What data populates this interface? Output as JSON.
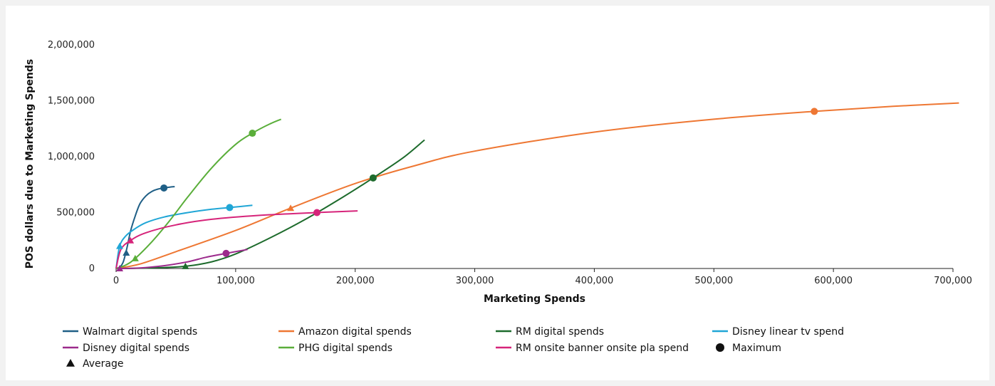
{
  "chart_data": {
    "type": "line",
    "title": "",
    "xlabel": "Marketing Spends",
    "ylabel": "POS dollars due to Marketing Spends",
    "xlim": [
      0,
      700000
    ],
    "ylim": [
      0,
      2000000
    ],
    "x_ticks": [
      0,
      100000,
      200000,
      300000,
      400000,
      500000,
      600000,
      700000
    ],
    "x_tick_labels": [
      "0",
      "100,000",
      "200,000",
      "300,000",
      "400,000",
      "500,000",
      "600,000",
      "700,000"
    ],
    "y_ticks": [
      0,
      500000,
      1000000,
      1500000,
      2000000
    ],
    "y_tick_labels": [
      "0",
      "500,000",
      "1,000,000",
      "1,500,000",
      "2,000,000"
    ],
    "grid": false,
    "legend_position": "bottom",
    "series": [
      {
        "name": "Walmart digital spends",
        "color": "#1f5f86",
        "points": [
          [
            0,
            0
          ],
          [
            3000,
            10000
          ],
          [
            6000,
            60000
          ],
          [
            9000,
            180000
          ],
          [
            12000,
            330000
          ],
          [
            16000,
            470000
          ],
          [
            20000,
            580000
          ],
          [
            25000,
            650000
          ],
          [
            30000,
            690000
          ],
          [
            35000,
            710000
          ],
          [
            40000,
            720000
          ],
          [
            45000,
            728000
          ],
          [
            49000,
            732000
          ]
        ],
        "average": [
          8500,
          140000
        ],
        "maximum": [
          40000,
          720000
        ]
      },
      {
        "name": "Amazon digital spends",
        "color": "#ee7733",
        "points": [
          [
            0,
            0
          ],
          [
            20000,
            40000
          ],
          [
            50000,
            150000
          ],
          [
            100000,
            340000
          ],
          [
            146000,
            540000
          ],
          [
            200000,
            760000
          ],
          [
            250000,
            920000
          ],
          [
            300000,
            1050000
          ],
          [
            400000,
            1220000
          ],
          [
            500000,
            1335000
          ],
          [
            584000,
            1405000
          ],
          [
            650000,
            1450000
          ],
          [
            705000,
            1480000
          ]
        ],
        "average": [
          146000,
          540000
        ],
        "maximum": [
          584000,
          1405000
        ]
      },
      {
        "name": "RM digital spends",
        "color": "#1d6b2c",
        "points": [
          [
            0,
            0
          ],
          [
            30000,
            5000
          ],
          [
            58000,
            20000
          ],
          [
            80000,
            60000
          ],
          [
            100000,
            130000
          ],
          [
            130000,
            280000
          ],
          [
            160000,
            450000
          ],
          [
            190000,
            640000
          ],
          [
            215000,
            810000
          ],
          [
            240000,
            990000
          ],
          [
            258000,
            1150000
          ]
        ],
        "average": [
          58000,
          20000
        ],
        "maximum": [
          215000,
          810000
        ]
      },
      {
        "name": "Disney linear tv spend",
        "color": "#20a6d6",
        "points": [
          [
            0,
            0
          ],
          [
            3000,
            200000
          ],
          [
            8000,
            290000
          ],
          [
            15000,
            350000
          ],
          [
            25000,
            410000
          ],
          [
            40000,
            460000
          ],
          [
            60000,
            500000
          ],
          [
            80000,
            530000
          ],
          [
            95000,
            545000
          ],
          [
            114000,
            565000
          ]
        ],
        "average": [
          3000,
          200000
        ],
        "maximum": [
          95000,
          545000
        ]
      },
      {
        "name": "Disney digital spends",
        "color": "#9c2a8c",
        "points": [
          [
            0,
            0
          ],
          [
            20000,
            5000
          ],
          [
            40000,
            25000
          ],
          [
            60000,
            60000
          ],
          [
            75000,
            100000
          ],
          [
            92000,
            135000
          ],
          [
            110000,
            170000
          ]
        ],
        "average": [
          3000,
          0
        ],
        "maximum": [
          92000,
          135000
        ]
      },
      {
        "name": "PHG digital spends",
        "color": "#5aae3a",
        "points": [
          [
            0,
            0
          ],
          [
            8000,
            30000
          ],
          [
            16000,
            90000
          ],
          [
            30000,
            240000
          ],
          [
            45000,
            430000
          ],
          [
            60000,
            640000
          ],
          [
            80000,
            900000
          ],
          [
            100000,
            1110000
          ],
          [
            114000,
            1210000
          ],
          [
            128000,
            1290000
          ],
          [
            138000,
            1335000
          ]
        ],
        "average": [
          16000,
          90000
        ],
        "maximum": [
          114000,
          1210000
        ]
      },
      {
        "name": "RM onsite banner onsite pla spend",
        "color": "#d6247a",
        "points": [
          [
            0,
            0
          ],
          [
            4000,
            170000
          ],
          [
            12000,
            250000
          ],
          [
            25000,
            320000
          ],
          [
            50000,
            390000
          ],
          [
            80000,
            440000
          ],
          [
            120000,
            475000
          ],
          [
            168000,
            500000
          ],
          [
            202000,
            515000
          ]
        ],
        "average": [
          12000,
          250000
        ],
        "maximum": [
          168000,
          500000
        ]
      }
    ],
    "marker_legend": [
      {
        "name": "Maximum",
        "shape": "circle"
      },
      {
        "name": "Average",
        "shape": "triangle"
      }
    ]
  }
}
